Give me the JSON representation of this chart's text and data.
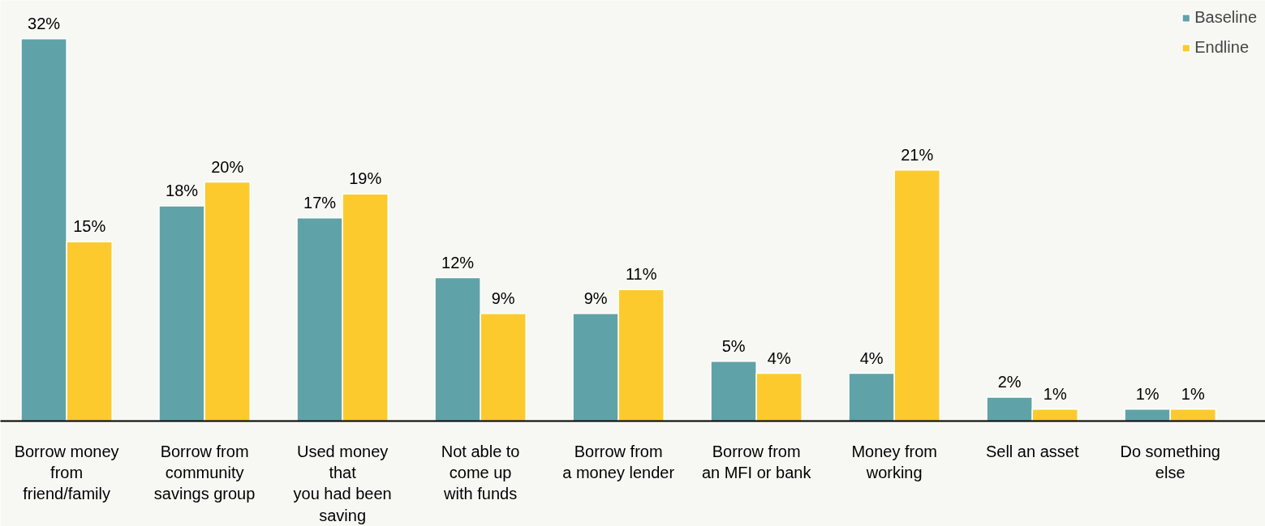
{
  "chart_data": {
    "type": "bar",
    "categories": [
      "Borrow money\nfrom\nfriend/family",
      "Borrow from\ncommunity\nsavings group",
      "Used money\nthat\nyou had been\nsaving",
      "Not able to\ncome up\nwith funds",
      "Borrow from\na money lender",
      "Borrow from\nan MFI or bank",
      "Money from\nworking",
      "Sell an asset",
      "Do something\nelse"
    ],
    "series": [
      {
        "name": "Baseline",
        "color": "#5fa3a9",
        "values": [
          32,
          18,
          17,
          12,
          9,
          5,
          4,
          2,
          1
        ],
        "value_labels": [
          "32%",
          "18%",
          "17%",
          "12%",
          "9%",
          "5%",
          "4%",
          "2%",
          "1%"
        ]
      },
      {
        "name": "Endline",
        "color": "#fdca2e",
        "values": [
          15,
          20,
          19,
          9,
          11,
          4,
          21,
          1,
          1
        ],
        "value_labels": [
          "15%",
          "20%",
          "19%",
          "9%",
          "11%",
          "4%",
          "21%",
          "1%",
          "1%"
        ]
      }
    ],
    "legend": "top right",
    "grid": false
  }
}
